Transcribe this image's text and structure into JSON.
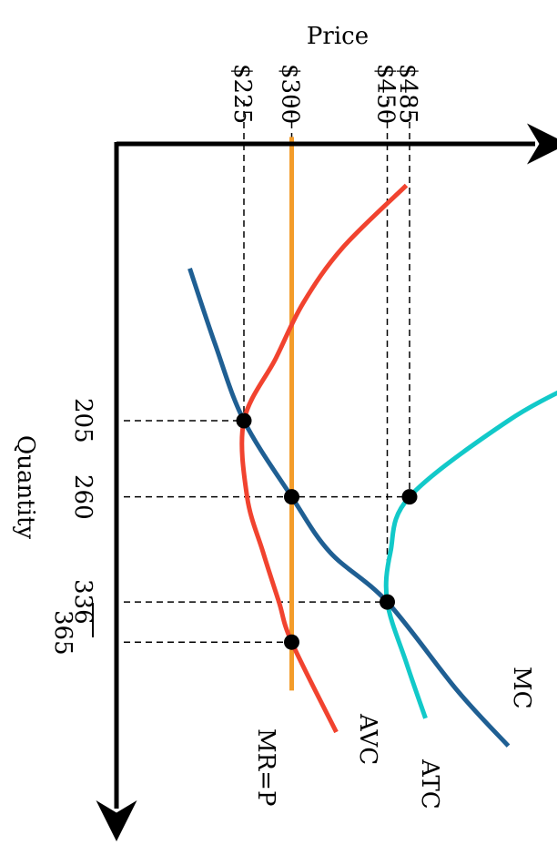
{
  "chart_data": {
    "type": "line",
    "title": "",
    "price_axis_label": "Price",
    "quantity_axis_label": "Quantity",
    "price_ticks": [
      {
        "value": 225,
        "label": "$225"
      },
      {
        "value": 300,
        "label": "$300"
      },
      {
        "value": 450,
        "label": "$450"
      },
      {
        "value": 485,
        "label": "$485"
      }
    ],
    "quantity_ticks": [
      {
        "value": 205,
        "label": "205"
      },
      {
        "value": 260,
        "label": "260"
      },
      {
        "value": 336,
        "label": "336"
      },
      {
        "value": 365,
        "label": "365"
      }
    ],
    "series": [
      {
        "name": "MR=P",
        "color": "#f39c2a",
        "points": [
          [
            0,
            300
          ],
          [
            400,
            300
          ]
        ]
      },
      {
        "name": "AVC",
        "color": "#f1432f",
        "points": [
          [
            35,
            480
          ],
          [
            80,
            380
          ],
          [
            120,
            318
          ],
          [
            160,
            275
          ],
          [
            205,
            225
          ],
          [
            260,
            230
          ],
          [
            300,
            255
          ],
          [
            336,
            280
          ],
          [
            365,
            300
          ],
          [
            430,
            370
          ]
        ]
      },
      {
        "name": "MC",
        "color": "#1f5f93",
        "points": [
          [
            95,
            140
          ],
          [
            150,
            180
          ],
          [
            205,
            225
          ],
          [
            260,
            300
          ],
          [
            300,
            360
          ],
          [
            336,
            450
          ],
          [
            400,
            560
          ],
          [
            440,
            640
          ]
        ]
      },
      {
        "name": "ATC",
        "color": "#12c9c9",
        "points": [
          [
            175,
            760
          ],
          [
            205,
            640
          ],
          [
            260,
            485
          ],
          [
            300,
            455
          ],
          [
            336,
            450
          ],
          [
            380,
            480
          ],
          [
            420,
            510
          ]
        ]
      }
    ],
    "points_of_interest": [
      {
        "q": 205,
        "p": 225
      },
      {
        "q": 260,
        "p": 300
      },
      {
        "q": 260,
        "p": 485
      },
      {
        "q": 336,
        "p": 450
      },
      {
        "q": 365,
        "p": 300
      }
    ]
  }
}
